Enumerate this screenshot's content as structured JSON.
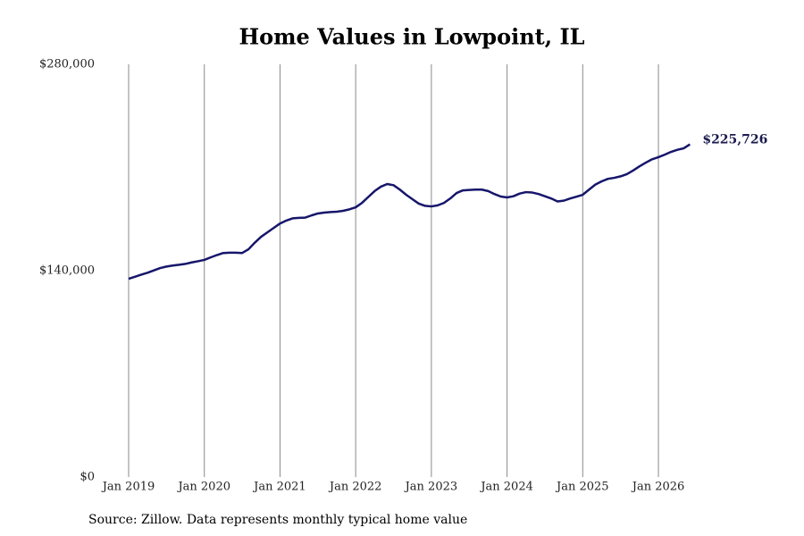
{
  "chart_data": {
    "type": "line",
    "title": "Home Values in Lowpoint, IL",
    "source": "Source: Zillow. Data represents monthly typical home value",
    "x": [
      "2019-01",
      "2019-02",
      "2019-03",
      "2019-04",
      "2019-05",
      "2019-06",
      "2019-07",
      "2019-08",
      "2019-09",
      "2019-10",
      "2019-11",
      "2019-12",
      "2020-01",
      "2020-02",
      "2020-03",
      "2020-04",
      "2020-05",
      "2020-06",
      "2020-07",
      "2020-08",
      "2020-09",
      "2020-10",
      "2020-11",
      "2020-12",
      "2021-01",
      "2021-02",
      "2021-03",
      "2021-04",
      "2021-05",
      "2021-06",
      "2021-07",
      "2021-08",
      "2021-09",
      "2021-10",
      "2021-11",
      "2021-12",
      "2022-01",
      "2022-02",
      "2022-03",
      "2022-04",
      "2022-05",
      "2022-06",
      "2022-07",
      "2022-08",
      "2022-09",
      "2022-10",
      "2022-11",
      "2022-12",
      "2023-01",
      "2023-02",
      "2023-03",
      "2023-04",
      "2023-05",
      "2023-06",
      "2023-07",
      "2023-08",
      "2023-09",
      "2023-10",
      "2023-11",
      "2023-12",
      "2024-01",
      "2024-02",
      "2024-03",
      "2024-04",
      "2024-05",
      "2024-06",
      "2024-07",
      "2024-08",
      "2024-09",
      "2024-10",
      "2024-11",
      "2024-12",
      "2025-01",
      "2025-02",
      "2025-03",
      "2025-04",
      "2025-05",
      "2025-06",
      "2025-07",
      "2025-08",
      "2025-09",
      "2025-10",
      "2025-11",
      "2025-12",
      "2026-01",
      "2026-02",
      "2026-03",
      "2026-04",
      "2026-05",
      "2026-06"
    ],
    "series": [
      {
        "name": "Home value",
        "color": "#16166b",
        "values": [
          134500,
          135900,
          137300,
          138600,
          140200,
          141800,
          142800,
          143500,
          144000,
          144600,
          145600,
          146400,
          147300,
          149000,
          150600,
          152000,
          152200,
          152200,
          152000,
          154500,
          159000,
          163000,
          166000,
          169000,
          172000,
          174000,
          175500,
          175800,
          176000,
          177500,
          178800,
          179400,
          179800,
          180000,
          180600,
          181600,
          183000,
          186000,
          190000,
          194000,
          197000,
          198800,
          198000,
          195000,
          191500,
          188500,
          185500,
          184000,
          183600,
          184300,
          186000,
          189000,
          192700,
          194500,
          194800,
          195000,
          195000,
          194000,
          192000,
          190300,
          189700,
          190500,
          192300,
          193300,
          193000,
          192000,
          190500,
          189000,
          187000,
          187500,
          189000,
          190200,
          191500,
          195000,
          198400,
          200600,
          202300,
          203000,
          204000,
          205500,
          208000,
          210800,
          213300,
          215600,
          217000,
          218700,
          220600,
          222000,
          223000,
          225726
        ],
        "value_labels": [
          null,
          null,
          null,
          null,
          null,
          null,
          null,
          null,
          null,
          null,
          null,
          null,
          null,
          null,
          null,
          null,
          null,
          null,
          null,
          null,
          null,
          null,
          null,
          null,
          null,
          null,
          null,
          null,
          null,
          null,
          null,
          null,
          null,
          null,
          null,
          null,
          null,
          null,
          null,
          null,
          null,
          null,
          null,
          null,
          null,
          null,
          null,
          null,
          null,
          null,
          null,
          null,
          null,
          null,
          null,
          null,
          null,
          null,
          null,
          null,
          null,
          null,
          null,
          null,
          null,
          null,
          null,
          null,
          null,
          null,
          null,
          null,
          null,
          null,
          null,
          null,
          null,
          null,
          null,
          null,
          null,
          null,
          null,
          null,
          null,
          null,
          null,
          null,
          null,
          "$225,726"
        ]
      }
    ],
    "ylim": [
      0,
      280000
    ],
    "yticks": [
      {
        "value": 0,
        "label": "$0"
      },
      {
        "value": 140000,
        "label": "$140,000"
      },
      {
        "value": 280000,
        "label": "$280,000"
      }
    ],
    "xticks": [
      {
        "value": "2019-01",
        "label": "Jan 2019"
      },
      {
        "value": "2020-01",
        "label": "Jan 2020"
      },
      {
        "value": "2021-01",
        "label": "Jan 2021"
      },
      {
        "value": "2022-01",
        "label": "Jan 2022"
      },
      {
        "value": "2023-01",
        "label": "Jan 2023"
      },
      {
        "value": "2024-01",
        "label": "Jan 2024"
      },
      {
        "value": "2025-01",
        "label": "Jan 2025"
      },
      {
        "value": "2026-01",
        "label": "Jan 2026"
      }
    ],
    "grid": "x"
  }
}
